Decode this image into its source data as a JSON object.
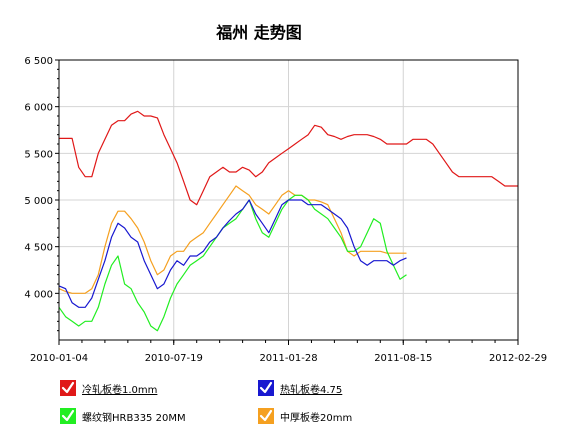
{
  "chart_data": {
    "type": "line",
    "title": "福州 走势图",
    "x_ticks": [
      "2010-01-04",
      "2010-07-19",
      "2011-01-28",
      "2011-08-15",
      "2012-02-29"
    ],
    "y_ticks": [
      "4 000",
      "4 500",
      "5 000",
      "5 500",
      "6 000",
      "6 500"
    ],
    "ylim": [
      3500,
      6500
    ],
    "grid": true,
    "legend_position": "bottom",
    "series": [
      {
        "name": "冷轧板卷1.0mm",
        "color": "#e01818",
        "values": [
          [
            0,
            5660
          ],
          [
            2,
            5660
          ],
          [
            3,
            5350
          ],
          [
            4,
            5250
          ],
          [
            5,
            5250
          ],
          [
            6,
            5500
          ],
          [
            7,
            5650
          ],
          [
            8,
            5800
          ],
          [
            9,
            5850
          ],
          [
            10,
            5850
          ],
          [
            11,
            5920
          ],
          [
            12,
            5950
          ],
          [
            13,
            5900
          ],
          [
            14,
            5900
          ],
          [
            15,
            5880
          ],
          [
            16,
            5700
          ],
          [
            17,
            5550
          ],
          [
            18,
            5400
          ],
          [
            19,
            5200
          ],
          [
            20,
            5000
          ],
          [
            21,
            4950
          ],
          [
            22,
            5100
          ],
          [
            23,
            5250
          ],
          [
            24,
            5300
          ],
          [
            25,
            5350
          ],
          [
            26,
            5300
          ],
          [
            27,
            5300
          ],
          [
            28,
            5350
          ],
          [
            29,
            5320
          ],
          [
            30,
            5250
          ],
          [
            31,
            5300
          ],
          [
            32,
            5400
          ],
          [
            33,
            5450
          ],
          [
            34,
            5500
          ],
          [
            35,
            5550
          ],
          [
            36,
            5600
          ],
          [
            37,
            5650
          ],
          [
            38,
            5700
          ],
          [
            39,
            5800
          ],
          [
            40,
            5780
          ],
          [
            41,
            5700
          ],
          [
            42,
            5680
          ],
          [
            43,
            5650
          ],
          [
            44,
            5680
          ],
          [
            45,
            5700
          ],
          [
            46,
            5700
          ],
          [
            47,
            5700
          ],
          [
            48,
            5680
          ],
          [
            49,
            5650
          ],
          [
            50,
            5600
          ],
          [
            51,
            5600
          ],
          [
            52,
            5600
          ],
          [
            53,
            5600
          ],
          [
            54,
            5650
          ],
          [
            55,
            5650
          ],
          [
            56,
            5650
          ],
          [
            57,
            5600
          ],
          [
            58,
            5500
          ],
          [
            59,
            5400
          ],
          [
            60,
            5300
          ],
          [
            61,
            5250
          ],
          [
            62,
            5250
          ],
          [
            63,
            5250
          ],
          [
            64,
            5250
          ],
          [
            65,
            5250
          ],
          [
            66,
            5250
          ],
          [
            67,
            5200
          ],
          [
            68,
            5150
          ],
          [
            69,
            5150
          ],
          [
            70,
            5150
          ]
        ]
      },
      {
        "name": "热轧板卷4.75",
        "color": "#1818d0",
        "values": [
          [
            0,
            4080
          ],
          [
            1,
            4050
          ],
          [
            2,
            3900
          ],
          [
            3,
            3850
          ],
          [
            4,
            3850
          ],
          [
            5,
            3950
          ],
          [
            6,
            4150
          ],
          [
            7,
            4350
          ],
          [
            8,
            4600
          ],
          [
            9,
            4750
          ],
          [
            10,
            4700
          ],
          [
            11,
            4600
          ],
          [
            12,
            4550
          ],
          [
            13,
            4350
          ],
          [
            14,
            4200
          ],
          [
            15,
            4050
          ],
          [
            16,
            4100
          ],
          [
            17,
            4250
          ],
          [
            18,
            4350
          ],
          [
            19,
            4300
          ],
          [
            20,
            4400
          ],
          [
            21,
            4400
          ],
          [
            22,
            4450
          ],
          [
            23,
            4550
          ],
          [
            24,
            4600
          ],
          [
            25,
            4700
          ],
          [
            26,
            4780
          ],
          [
            27,
            4850
          ],
          [
            28,
            4900
          ],
          [
            29,
            5000
          ],
          [
            30,
            4850
          ],
          [
            31,
            4750
          ],
          [
            32,
            4650
          ],
          [
            33,
            4800
          ],
          [
            34,
            4950
          ],
          [
            35,
            5000
          ],
          [
            36,
            5000
          ],
          [
            37,
            5000
          ],
          [
            38,
            4950
          ],
          [
            39,
            4950
          ],
          [
            40,
            4950
          ],
          [
            41,
            4900
          ],
          [
            42,
            4850
          ],
          [
            43,
            4800
          ],
          [
            44,
            4700
          ],
          [
            45,
            4500
          ],
          [
            46,
            4350
          ],
          [
            47,
            4300
          ],
          [
            48,
            4350
          ],
          [
            49,
            4350
          ],
          [
            50,
            4350
          ],
          [
            51,
            4300
          ],
          [
            52,
            4350
          ],
          [
            53,
            4380
          ]
        ]
      },
      {
        "name": "螺纹钢HRB335 20MM",
        "color": "#22ee22",
        "values": [
          [
            0,
            3850
          ],
          [
            1,
            3750
          ],
          [
            2,
            3700
          ],
          [
            3,
            3650
          ],
          [
            4,
            3700
          ],
          [
            5,
            3700
          ],
          [
            6,
            3850
          ],
          [
            7,
            4100
          ],
          [
            8,
            4300
          ],
          [
            9,
            4400
          ],
          [
            10,
            4100
          ],
          [
            11,
            4050
          ],
          [
            12,
            3900
          ],
          [
            13,
            3800
          ],
          [
            14,
            3650
          ],
          [
            15,
            3600
          ],
          [
            16,
            3750
          ],
          [
            17,
            3950
          ],
          [
            18,
            4100
          ],
          [
            19,
            4200
          ],
          [
            20,
            4300
          ],
          [
            21,
            4350
          ],
          [
            22,
            4400
          ],
          [
            23,
            4500
          ],
          [
            24,
            4600
          ],
          [
            25,
            4700
          ],
          [
            26,
            4750
          ],
          [
            27,
            4800
          ],
          [
            28,
            4900
          ],
          [
            29,
            5000
          ],
          [
            30,
            4800
          ],
          [
            31,
            4650
          ],
          [
            32,
            4600
          ],
          [
            33,
            4750
          ],
          [
            34,
            4900
          ],
          [
            35,
            5000
          ],
          [
            36,
            5050
          ],
          [
            37,
            5050
          ],
          [
            38,
            5000
          ],
          [
            39,
            4900
          ],
          [
            40,
            4850
          ],
          [
            41,
            4800
          ],
          [
            42,
            4700
          ],
          [
            43,
            4600
          ],
          [
            44,
            4450
          ],
          [
            45,
            4450
          ],
          [
            46,
            4500
          ],
          [
            47,
            4650
          ],
          [
            48,
            4800
          ],
          [
            49,
            4750
          ],
          [
            50,
            4450
          ],
          [
            51,
            4300
          ],
          [
            52,
            4150
          ],
          [
            53,
            4200
          ]
        ]
      },
      {
        "name": "中厚板卷20mm",
        "color": "#f5a020",
        "values": [
          [
            0,
            4050
          ],
          [
            1,
            4020
          ],
          [
            2,
            4000
          ],
          [
            3,
            4000
          ],
          [
            4,
            4000
          ],
          [
            5,
            4050
          ],
          [
            6,
            4200
          ],
          [
            7,
            4500
          ],
          [
            8,
            4750
          ],
          [
            9,
            4880
          ],
          [
            10,
            4880
          ],
          [
            11,
            4800
          ],
          [
            12,
            4700
          ],
          [
            13,
            4550
          ],
          [
            14,
            4350
          ],
          [
            15,
            4200
          ],
          [
            16,
            4250
          ],
          [
            17,
            4400
          ],
          [
            18,
            4450
          ],
          [
            19,
            4450
          ],
          [
            20,
            4550
          ],
          [
            21,
            4600
          ],
          [
            22,
            4650
          ],
          [
            23,
            4750
          ],
          [
            24,
            4850
          ],
          [
            25,
            4950
          ],
          [
            26,
            5050
          ],
          [
            27,
            5150
          ],
          [
            28,
            5100
          ],
          [
            29,
            5050
          ],
          [
            30,
            4950
          ],
          [
            31,
            4900
          ],
          [
            32,
            4850
          ],
          [
            33,
            4950
          ],
          [
            34,
            5050
          ],
          [
            35,
            5100
          ],
          [
            36,
            5050
          ],
          [
            37,
            5050
          ],
          [
            38,
            5000
          ],
          [
            39,
            5000
          ],
          [
            40,
            4980
          ],
          [
            41,
            4950
          ],
          [
            42,
            4800
          ],
          [
            43,
            4650
          ],
          [
            44,
            4450
          ],
          [
            45,
            4400
          ],
          [
            46,
            4450
          ],
          [
            47,
            4450
          ],
          [
            48,
            4450
          ],
          [
            49,
            4450
          ],
          [
            50,
            4430
          ],
          [
            51,
            4430
          ],
          [
            52,
            4430
          ],
          [
            53,
            4430
          ]
        ]
      }
    ]
  }
}
